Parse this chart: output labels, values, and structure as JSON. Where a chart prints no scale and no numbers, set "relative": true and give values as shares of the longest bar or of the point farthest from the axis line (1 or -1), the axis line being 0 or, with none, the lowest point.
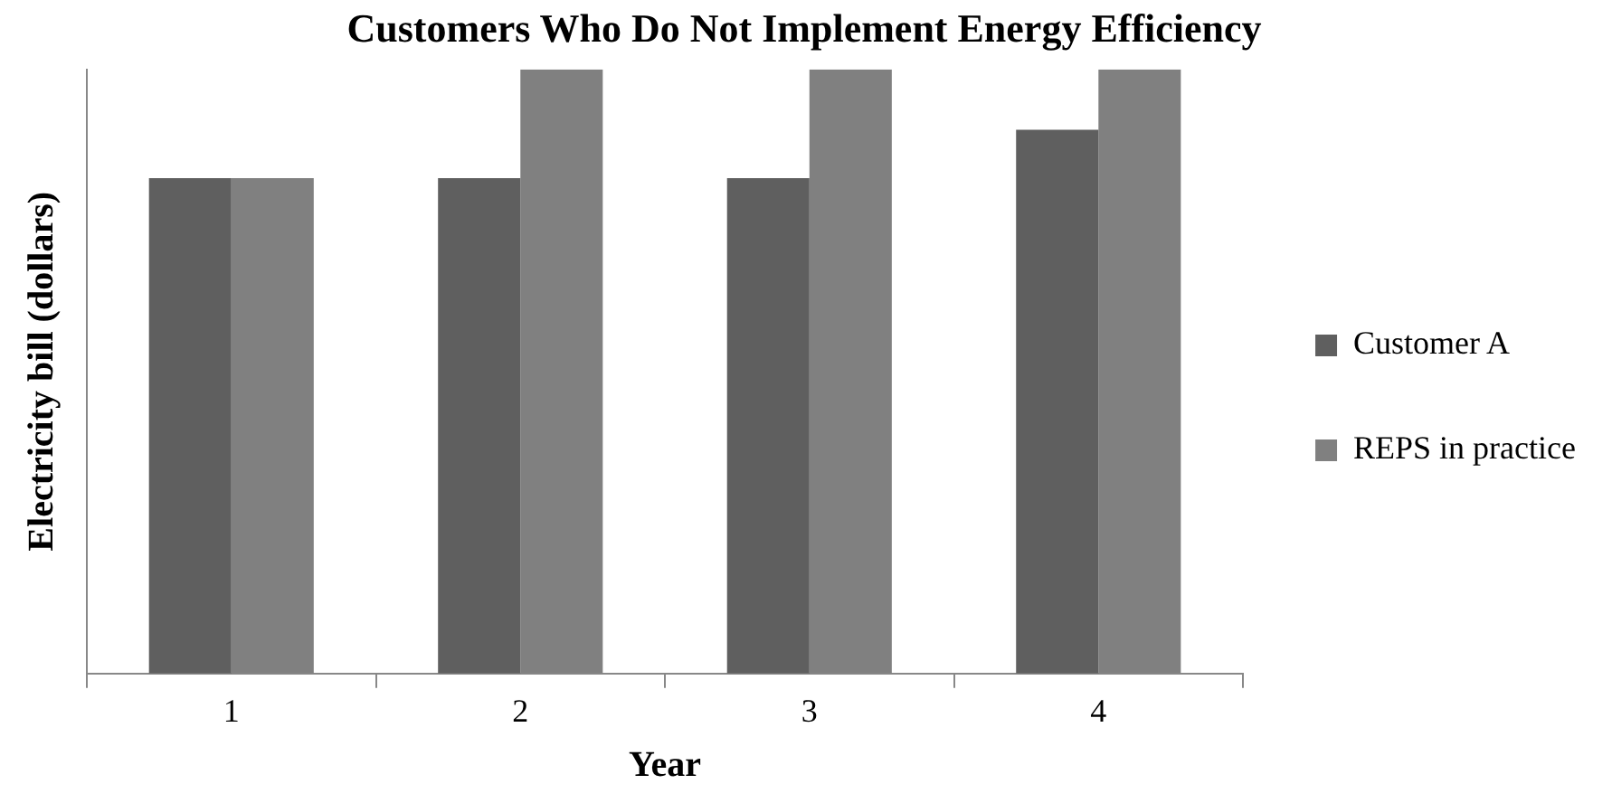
{
  "chart_data": {
    "type": "bar",
    "title": "Customers Who Do Not Implement Energy Efficiency",
    "xlabel": "Year",
    "ylabel": "Electricity bill (dollars)",
    "categories": [
      "1",
      "2",
      "3",
      "4"
    ],
    "relative": true,
    "legend": "right",
    "grid": false,
    "series": [
      {
        "name": "Customer A",
        "color": "#5f5f5f",
        "values": [
          0.82,
          0.82,
          0.82,
          0.9
        ]
      },
      {
        "name": "REPS in practice",
        "color": "#808080",
        "values": [
          0.82,
          1,
          1,
          1
        ]
      }
    ]
  }
}
